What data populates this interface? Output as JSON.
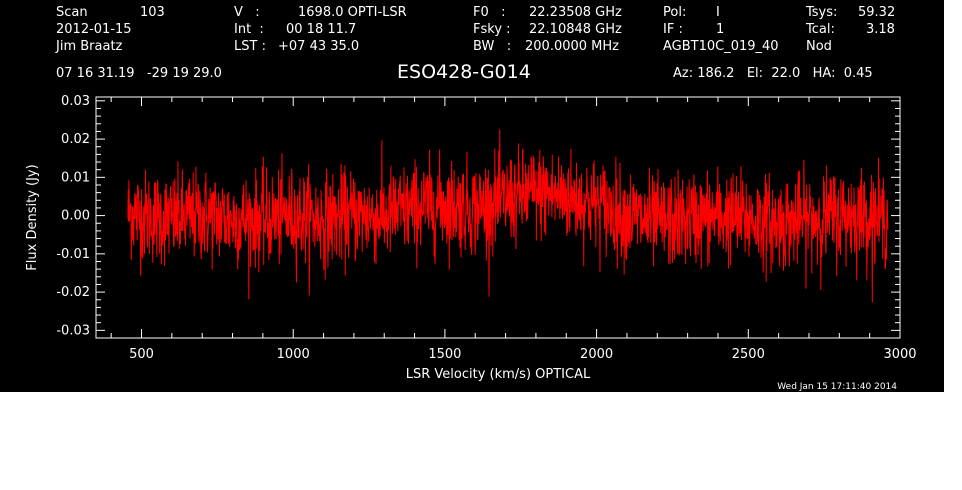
{
  "header": {
    "col1": {
      "scan_label": "Scan",
      "scan_value": "103",
      "date": "2012-01-15",
      "observer": "Jim Braatz"
    },
    "col2": {
      "v_label": "V   :",
      "v_value": "1698.0 OPTI-LSR",
      "int_label": "Int  :",
      "int_value": "00 18 11.7",
      "lst_label": "LST :",
      "lst_value": "+07 43 35.0"
    },
    "col3": {
      "f0_label": "F0   :",
      "f0_value": "22.23508 GHz",
      "fsky_label": "Fsky :",
      "fsky_value": "22.10848 GHz",
      "bw_label": "BW   :",
      "bw_value": "200.0000 MHz"
    },
    "col4": {
      "pol_label": "Pol:",
      "pol_value": "I",
      "if_label": "IF :",
      "if_value": "1",
      "project": "AGBT10C_019_40"
    },
    "col5": {
      "tsys_label": "Tsys:",
      "tsys_value": "59.32",
      "tcal_label": "Tcal:",
      "tcal_value": "3.18",
      "mode": "Nod"
    },
    "coords": "07 16 31.19   -29 19 29.0",
    "source": "ESO428-G014",
    "az_el_ha": "Az: 186.2   El:  22.0   HA:  0.45"
  },
  "timestamp": "Wed Jan 15 17:11:40 2014",
  "colors": {
    "background": "#000000",
    "foreground": "#ffffff",
    "series": "#ff0000"
  },
  "chart_data": {
    "type": "line",
    "xlabel": "LSR Velocity (km/s) OPTICAL",
    "ylabel": "Flux Density (Jy)",
    "xlim": [
      350,
      3000
    ],
    "ylim": [
      -0.032,
      0.031
    ],
    "x_ticks": [
      500,
      1000,
      1500,
      2000,
      2500,
      3000
    ],
    "y_ticks": [
      -0.03,
      -0.02,
      -0.01,
      0.0,
      0.01,
      0.02,
      0.03
    ],
    "y_tick_labels": [
      "-0.03",
      "-0.02",
      "-0.01",
      "0.00",
      "0.01",
      "0.02",
      "0.03"
    ],
    "grid": false,
    "series": [
      {
        "color": "#ff0000",
        "noise_rms_jy": 0.006,
        "x": [
          455,
          500,
          600,
          700,
          800,
          900,
          1000,
          1100,
          1200,
          1300,
          1400,
          1500,
          1600,
          1700,
          1800,
          1900,
          2000,
          2100,
          2200,
          2300,
          2400,
          2500,
          2600,
          2700,
          2800,
          2900,
          2960
        ],
        "y": [
          0.001,
          0.0,
          -0.001,
          0.0,
          -0.001,
          -0.001,
          0.0,
          -0.001,
          0.0,
          0.0,
          0.002,
          0.003,
          0.002,
          0.004,
          0.006,
          0.005,
          0.003,
          0.0,
          -0.002,
          -0.001,
          0.0,
          -0.001,
          -0.002,
          -0.001,
          0.0,
          0.0,
          -0.001
        ]
      }
    ]
  }
}
